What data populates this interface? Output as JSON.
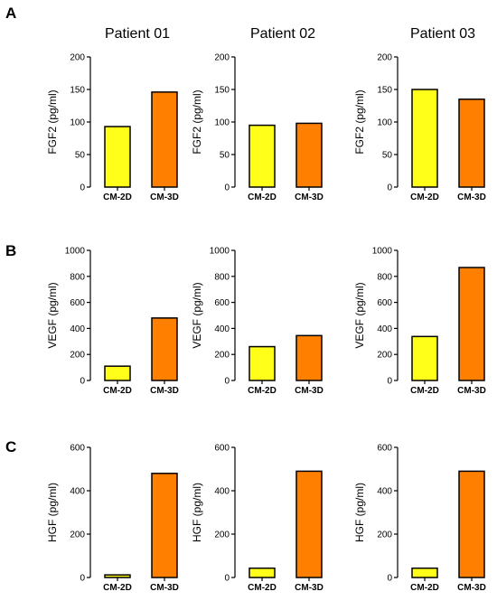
{
  "panel_letters": [
    "A",
    "B",
    "C"
  ],
  "column_headers": [
    "Patient 01",
    "Patient 02",
    "Patient 03"
  ],
  "colors": {
    "CM-2D": "#ffff1a",
    "CM-3D": "#ff8000",
    "outline": "#000000"
  },
  "chart_data": [
    {
      "type": "bar",
      "panel": "A",
      "title": "Patient 01",
      "ylabel": "FGF2 (pg/ml)",
      "ylim": [
        0,
        200
      ],
      "yticks": [
        0,
        50,
        100,
        150,
        200
      ],
      "categories": [
        "CM-2D",
        "CM-3D"
      ],
      "values": [
        93,
        146
      ]
    },
    {
      "type": "bar",
      "panel": "A",
      "title": "Patient 02",
      "ylabel": "FGF2 (pg/ml)",
      "ylim": [
        0,
        200
      ],
      "yticks": [
        0,
        50,
        100,
        150,
        200
      ],
      "categories": [
        "CM-2D",
        "CM-3D"
      ],
      "values": [
        95,
        98
      ]
    },
    {
      "type": "bar",
      "panel": "A",
      "title": "Patient 03",
      "ylabel": "FGF2 (pg/ml)",
      "ylim": [
        0,
        200
      ],
      "yticks": [
        0,
        50,
        100,
        150,
        200
      ],
      "categories": [
        "CM-2D",
        "CM-3D"
      ],
      "values": [
        150,
        135
      ]
    },
    {
      "type": "bar",
      "panel": "B",
      "title": "",
      "ylabel": "VEGF (pg/ml)",
      "ylim": [
        0,
        1000
      ],
      "yticks": [
        0,
        200,
        400,
        600,
        800,
        1000
      ],
      "categories": [
        "CM-2D",
        "CM-3D"
      ],
      "values": [
        110,
        480
      ]
    },
    {
      "type": "bar",
      "panel": "B",
      "title": "",
      "ylabel": "VEGF (pg/ml)",
      "ylim": [
        0,
        1000
      ],
      "yticks": [
        0,
        200,
        400,
        600,
        800,
        1000
      ],
      "categories": [
        "CM-2D",
        "CM-3D"
      ],
      "values": [
        260,
        345
      ]
    },
    {
      "type": "bar",
      "panel": "B",
      "title": "",
      "ylabel": "VEGF (pg/ml)",
      "ylim": [
        0,
        1000
      ],
      "yticks": [
        0,
        200,
        400,
        600,
        800,
        1000
      ],
      "categories": [
        "CM-2D",
        "CM-3D"
      ],
      "values": [
        338,
        868
      ]
    },
    {
      "type": "bar",
      "panel": "C",
      "title": "",
      "ylabel": "HGF (pg/ml)",
      "ylim": [
        0,
        600
      ],
      "yticks": [
        0,
        200,
        400,
        600
      ],
      "categories": [
        "CM-2D",
        "CM-3D"
      ],
      "values": [
        12,
        480
      ]
    },
    {
      "type": "bar",
      "panel": "C",
      "title": "",
      "ylabel": "HGF (pg/ml)",
      "ylim": [
        0,
        600
      ],
      "yticks": [
        0,
        200,
        400,
        600
      ],
      "categories": [
        "CM-2D",
        "CM-3D"
      ],
      "values": [
        43,
        490
      ]
    },
    {
      "type": "bar",
      "panel": "C",
      "title": "",
      "ylabel": "HGF (pg/ml)",
      "ylim": [
        0,
        600
      ],
      "yticks": [
        0,
        200,
        400,
        600
      ],
      "categories": [
        "CM-2D",
        "CM-3D"
      ],
      "values": [
        43,
        490
      ]
    }
  ]
}
